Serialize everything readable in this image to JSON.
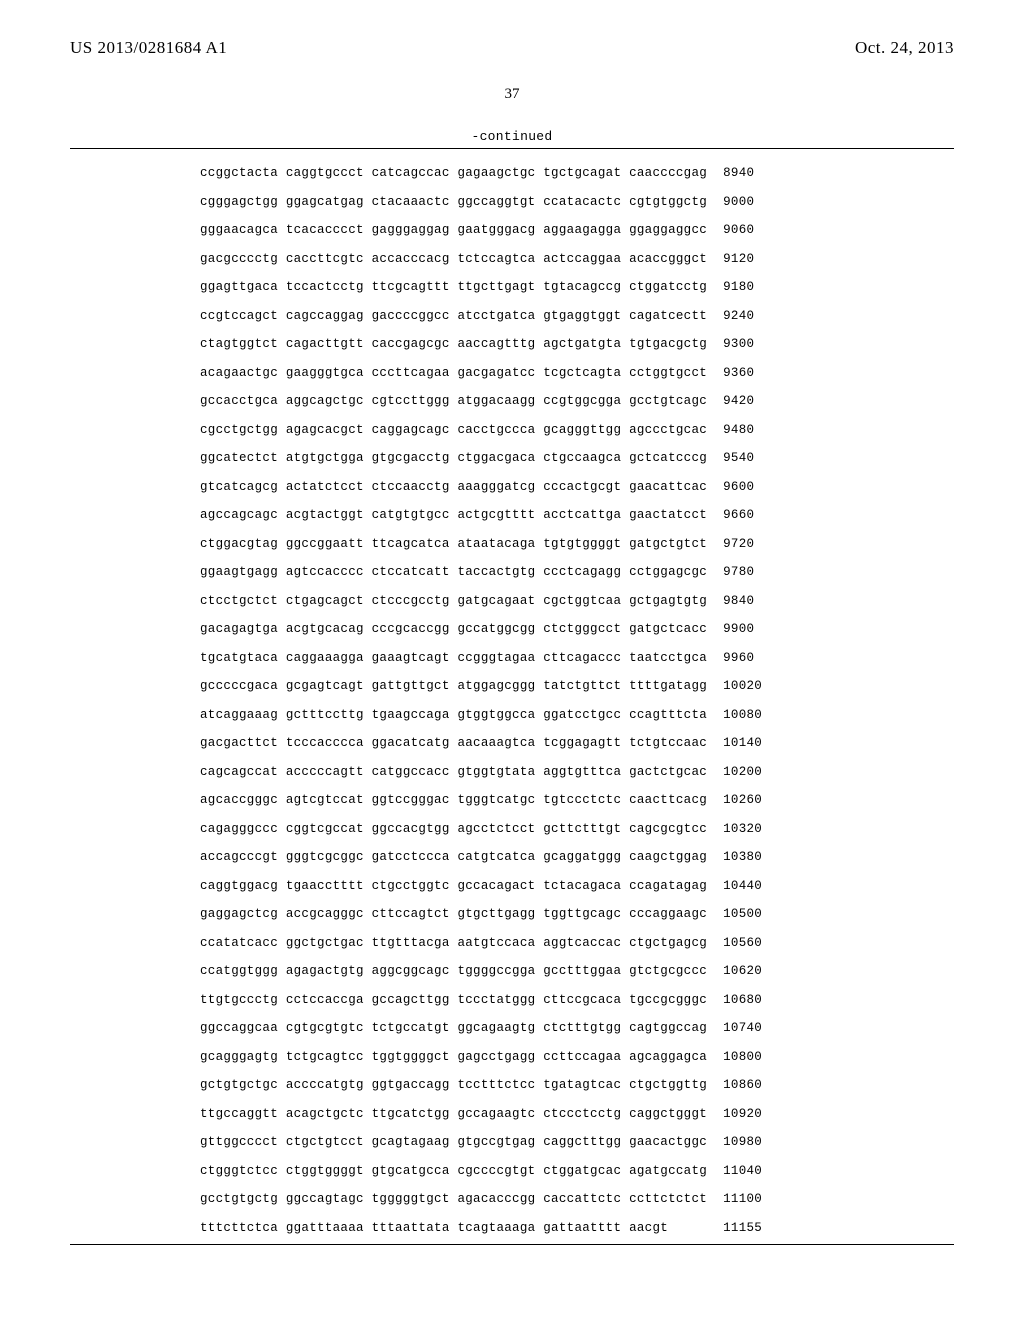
{
  "header": {
    "publication_number": "US 2013/0281684 A1",
    "publication_date": "Oct. 24, 2013"
  },
  "page_number": "37",
  "continued_label": "-continued",
  "sequence_rows": [
    {
      "seq": "ccggctacta caggtgccct catcagccac gagaagctgc tgctgcagat caaccccgag",
      "pos": "8940"
    },
    {
      "seq": "cgggagctgg ggagcatgag ctacaaactc ggccaggtgt ccatacactc cgtgtggctg",
      "pos": "9000"
    },
    {
      "seq": "gggaacagca tcacacccct gagggaggag gaatgggacg aggaagagga ggaggaggcc",
      "pos": "9060"
    },
    {
      "seq": "gacgcccctg caccttcgtc accacccacg tctccagtca actccaggaa acaccgggct",
      "pos": "9120"
    },
    {
      "seq": "ggagttgaca tccactcctg ttcgcagttt ttgcttgagt tgtacagccg ctggatcctg",
      "pos": "9180"
    },
    {
      "seq": "ccgtccagct cagccaggag gaccccggcc atcctgatca gtgaggtggt cagatcectt",
      "pos": "9240"
    },
    {
      "seq": "ctagtggtct cagacttgtt caccgagcgc aaccagtttg agctgatgta tgtgacgctg",
      "pos": "9300"
    },
    {
      "seq": "acagaactgc gaagggtgca cccttcagaa gacgagatcc tcgctcagta cctggtgcct",
      "pos": "9360"
    },
    {
      "seq": "gccacctgca aggcagctgc cgtccttggg atggacaagg ccgtggcgga gcctgtcagc",
      "pos": "9420"
    },
    {
      "seq": "cgcctgctgg agagcacgct caggagcagc cacctgccca gcagggttgg agccctgcac",
      "pos": "9480"
    },
    {
      "seq": "ggcatectct atgtgctgga gtgcgacctg ctggacgaca ctgccaagca gctcatcccg",
      "pos": "9540"
    },
    {
      "seq": "gtcatcagcg actatctcct ctccaacctg aaagggatcg cccactgcgt gaacattcac",
      "pos": "9600"
    },
    {
      "seq": "agccagcagc acgtactggt catgtgtgcc actgcgtttt acctcattga gaactatcct",
      "pos": "9660"
    },
    {
      "seq": "ctggacgtag ggccggaatt ttcagcatca ataatacaga tgtgtggggt gatgctgtct",
      "pos": "9720"
    },
    {
      "seq": "ggaagtgagg agtccacccc ctccatcatt taccactgtg ccctcagagg cctggagcgc",
      "pos": "9780"
    },
    {
      "seq": "ctcctgctct ctgagcagct ctcccgcctg gatgcagaat cgctggtcaa gctgagtgtg",
      "pos": "9840"
    },
    {
      "seq": "gacagagtga acgtgcacag cccgcaccgg gccatggcgg ctctgggcct gatgctcacc",
      "pos": "9900"
    },
    {
      "seq": "tgcatgtaca caggaaagga gaaagtcagt ccgggtagaa cttcagaccc taatcctgca",
      "pos": "9960"
    },
    {
      "seq": "gcccccgaca gcgagtcagt gattgttgct atggagcggg tatctgttct ttttgatagg",
      "pos": "10020"
    },
    {
      "seq": "atcaggaaag gctttccttg tgaagccaga gtggtggcca ggatcctgcc ccagtttcta",
      "pos": "10080"
    },
    {
      "seq": "gacgacttct tcccacccca ggacatcatg aacaaagtca tcggagagtt tctgtccaac",
      "pos": "10140"
    },
    {
      "seq": "cagcagccat acccccagtt catggccacc gtggtgtata aggtgtttca gactctgcac",
      "pos": "10200"
    },
    {
      "seq": "agcaccgggc agtcgtccat ggtccgggac tgggtcatgc tgtccctctc caacttcacg",
      "pos": "10260"
    },
    {
      "seq": "cagagggccc cggtcgccat ggccacgtgg agcctctcct gcttctttgt cagcgcgtcc",
      "pos": "10320"
    },
    {
      "seq": "accagcccgt gggtcgcggc gatcctccca catgtcatca gcaggatggg caagctggag",
      "pos": "10380"
    },
    {
      "seq": "caggtggacg tgaacctttt ctgcctggtc gccacagact tctacagaca ccagatagag",
      "pos": "10440"
    },
    {
      "seq": "gaggagctcg accgcagggc cttccagtct gtgcttgagg tggttgcagc cccaggaagc",
      "pos": "10500"
    },
    {
      "seq": "ccatatcacc ggctgctgac ttgtttacga aatgtccaca aggtcaccac ctgctgagcg",
      "pos": "10560"
    },
    {
      "seq": "ccatggtggg agagactgtg aggcggcagc tggggccgga gcctttggaa gtctgcgccc",
      "pos": "10620"
    },
    {
      "seq": "ttgtgccctg cctccaccga gccagcttgg tccctatggg cttccgcaca tgccgcgggc",
      "pos": "10680"
    },
    {
      "seq": "ggccaggcaa cgtgcgtgtc tctgccatgt ggcagaagtg ctctttgtgg cagtggccag",
      "pos": "10740"
    },
    {
      "seq": "gcagggagtg tctgcagtcc tggtggggct gagcctgagg ccttccagaa agcaggagca",
      "pos": "10800"
    },
    {
      "seq": "gctgtgctgc accccatgtg ggtgaccagg tcctttctcc tgatagtcac ctgctggttg",
      "pos": "10860"
    },
    {
      "seq": "ttgccaggtt acagctgctc ttgcatctgg gccagaagtc ctccctcctg caggctgggt",
      "pos": "10920"
    },
    {
      "seq": "gttggcccct ctgctgtcct gcagtagaag gtgccgtgag caggctttgg gaacactggc",
      "pos": "10980"
    },
    {
      "seq": "ctgggtctcc ctggtggggt gtgcatgcca cgccccgtgt ctggatgcac agatgccatg",
      "pos": "11040"
    },
    {
      "seq": "gcctgtgctg ggccagtagc tgggggtgct agacacccgg caccattctc ccttctctct",
      "pos": "11100"
    },
    {
      "seq": "tttcttctca ggatttaaaa tttaattata tcagtaaaga gattaatttt aacgt     ",
      "pos": "11155"
    }
  ]
}
